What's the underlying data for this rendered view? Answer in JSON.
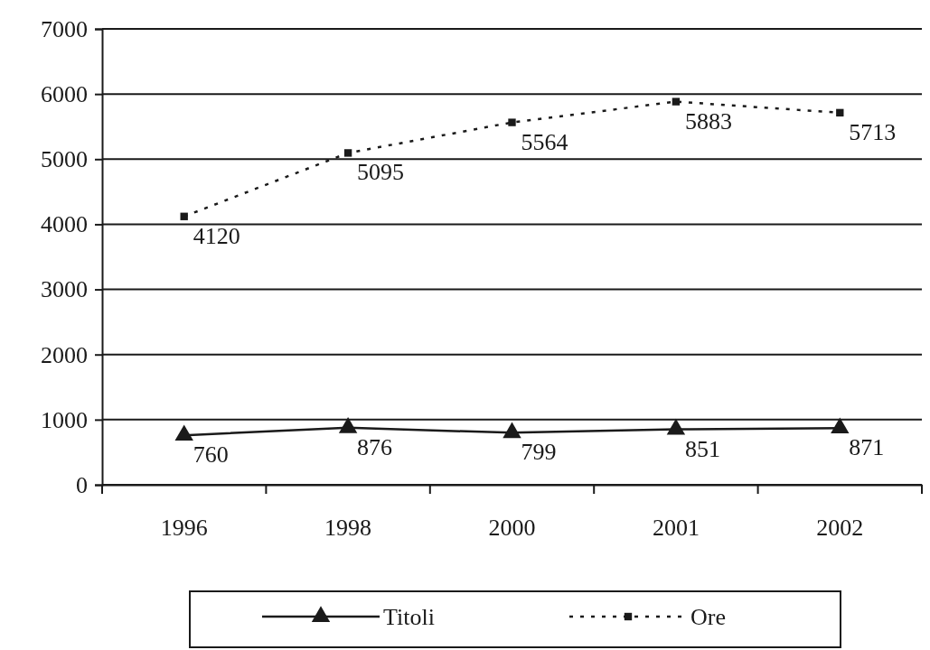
{
  "chart_data": {
    "type": "line",
    "categories": [
      "1996",
      "1998",
      "2000",
      "2001",
      "2002"
    ],
    "series": [
      {
        "name": "Titoli",
        "color": "#1a1a1a",
        "values": [
          760,
          876,
          799,
          851,
          871
        ],
        "marker": "triangle",
        "line_style": "solid"
      },
      {
        "name": "Ore",
        "color": "#1a1a1a",
        "values": [
          4120,
          5095,
          5564,
          5883,
          5713
        ],
        "marker": "square",
        "line_style": "dotted"
      }
    ],
    "ylim": [
      0,
      7000
    ],
    "yticks": [
      0,
      1000,
      2000,
      3000,
      4000,
      5000,
      6000,
      7000
    ],
    "grid": "y",
    "legend": "bottom",
    "data_labels": true
  }
}
